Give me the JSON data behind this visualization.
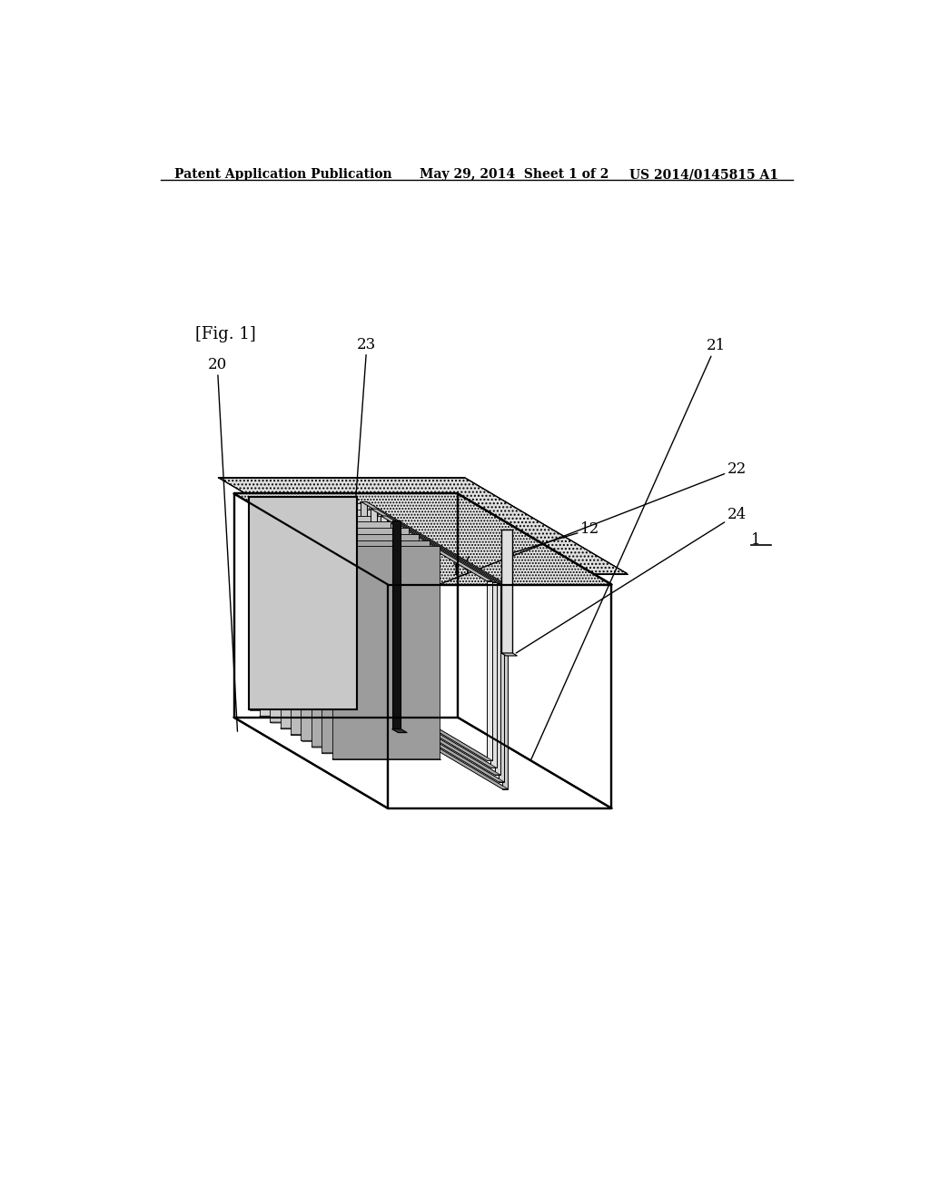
{
  "bg_color": "#ffffff",
  "line_color": "#000000",
  "header_left": "Patent Application Publication",
  "header_mid": "May 29, 2014  Sheet 1 of 2",
  "header_right": "US 2014/0145815 A1",
  "fig_label": "[Fig. 1]"
}
